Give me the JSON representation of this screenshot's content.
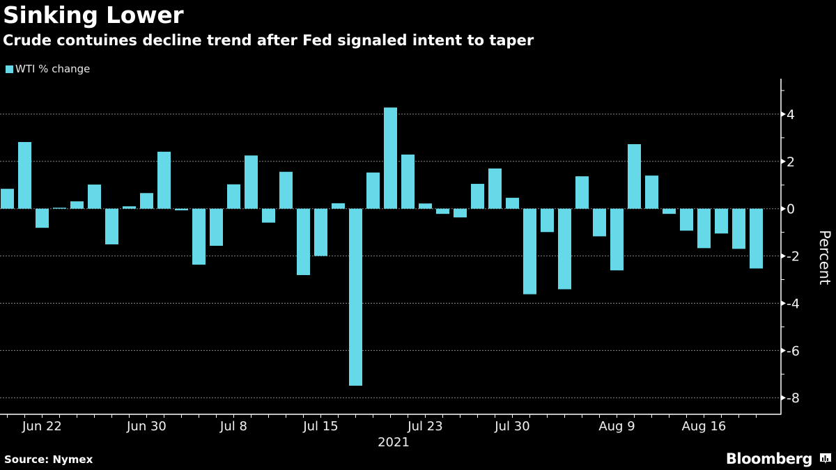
{
  "header": {
    "title": "Sinking Lower",
    "subtitle": "Crude contuines decline trend after Fed signaled intent to taper"
  },
  "legend": {
    "label": "WTI % change",
    "color": "#66d9e8"
  },
  "footer": {
    "source": "Source: Nymex",
    "brand": "Bloomberg",
    "brand_icon": "bloomberg-chart-icon"
  },
  "chart_data": {
    "type": "bar",
    "title": "Sinking Lower",
    "subtitle": "Crude contuines decline trend after Fed signaled intent to taper",
    "xlabel": "2021",
    "ylabel": "Percent",
    "ylim": [
      -8.7,
      5.5
    ],
    "yticks": [
      4,
      2,
      0,
      -2,
      -4,
      -6,
      -8
    ],
    "y_axis_side": "right",
    "grid": true,
    "legend_position": "top-left",
    "series": [
      {
        "name": "WTI % change",
        "color": "#66d9e8",
        "values": [
          0.84,
          2.82,
          -0.81,
          0.04,
          0.31,
          1.02,
          -1.51,
          0.1,
          0.66,
          2.41,
          -0.07,
          -2.37,
          -1.57,
          1.03,
          2.25,
          -0.59,
          1.56,
          -2.81,
          -2.0,
          0.23,
          -7.49,
          1.53,
          4.28,
          2.29,
          0.22,
          -0.22,
          -0.37,
          1.05,
          1.7,
          0.46,
          -3.62,
          -0.99,
          -3.41,
          1.37,
          -1.17,
          -2.61,
          2.73,
          1.4,
          -0.22,
          -0.93,
          -1.67,
          -1.05,
          -1.7,
          -2.53
        ]
      }
    ],
    "categories": [
      "Jun 18",
      "Jun 21",
      "Jun 22",
      "Jun 23",
      "Jun 24",
      "Jun 25",
      "Jun 28",
      "Jun 29",
      "Jun 30",
      "Jul 1",
      "Jul 2",
      "Jul 6",
      "Jul 7",
      "Jul 8",
      "Jul 9",
      "Jul 12",
      "Jul 13",
      "Jul 14",
      "Jul 15",
      "Jul 16",
      "Jul 19",
      "Jul 20",
      "Jul 21",
      "Jul 22",
      "Jul 23",
      "Jul 26",
      "Jul 27",
      "Jul 28",
      "Jul 29",
      "Jul 30",
      "Aug 2",
      "Aug 3",
      "Aug 4",
      "Aug 5",
      "Aug 6",
      "Aug 9",
      "Aug 10",
      "Aug 11",
      "Aug 12",
      "Aug 13",
      "Aug 16",
      "Aug 17",
      "Aug 18",
      "Aug 19"
    ],
    "xtick_labels": [
      {
        "label": "Jun 22",
        "category": "Jun 22"
      },
      {
        "label": "Jun 30",
        "category": "Jun 30"
      },
      {
        "label": "Jul 8",
        "category": "Jul 8"
      },
      {
        "label": "Jul 15",
        "category": "Jul 15"
      },
      {
        "label": "Jul 23",
        "category": "Jul 23"
      },
      {
        "label": "Jul 30",
        "category": "Jul 30"
      },
      {
        "label": "Aug 9",
        "category": "Aug 9"
      },
      {
        "label": "Aug 16",
        "category": "Aug 16"
      }
    ]
  }
}
